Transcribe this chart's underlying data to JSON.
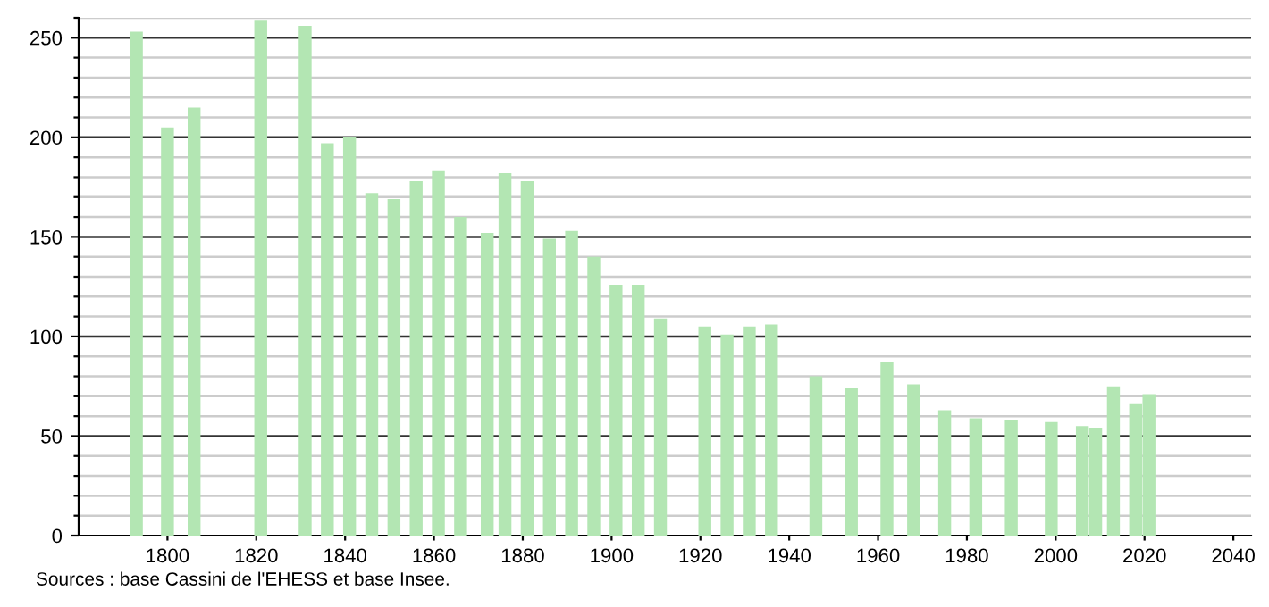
{
  "chart_data": {
    "type": "bar",
    "color": "#b3e6b3",
    "x": [
      1793,
      1800,
      1806,
      1821,
      1831,
      1836,
      1841,
      1846,
      1851,
      1856,
      1861,
      1866,
      1872,
      1876,
      1881,
      1886,
      1891,
      1896,
      1901,
      1906,
      1911,
      1921,
      1926,
      1931,
      1936,
      1946,
      1954,
      1962,
      1968,
      1975,
      1982,
      1990,
      1999,
      2006,
      2009,
      2013,
      2018,
      2021
    ],
    "values": [
      253,
      205,
      215,
      259,
      256,
      197,
      200,
      172,
      169,
      178,
      183,
      160,
      152,
      182,
      178,
      149,
      153,
      140,
      126,
      126,
      109,
      105,
      101,
      105,
      106,
      80,
      74,
      87,
      76,
      63,
      59,
      58,
      57,
      55,
      54,
      75,
      66,
      71
    ],
    "xlim": [
      1780,
      2044
    ],
    "xticks": [
      1800,
      1820,
      1840,
      1860,
      1880,
      1900,
      1920,
      1940,
      1960,
      1980,
      2000,
      2020,
      2040
    ],
    "ylim": [
      0,
      260
    ],
    "yticks": [
      0,
      {
        "value": 10,
        "label": null
      },
      {
        "value": 20,
        "label": null
      },
      {
        "value": 30,
        "label": null
      },
      {
        "value": 40,
        "label": null
      },
      50,
      {
        "value": 60,
        "label": null
      },
      {
        "value": 70,
        "label": null
      },
      {
        "value": 80,
        "label": null
      },
      {
        "value": 90,
        "label": null
      },
      100,
      {
        "value": 110,
        "label": null
      },
      {
        "value": 120,
        "label": null
      },
      {
        "value": 130,
        "label": null
      },
      {
        "value": 140,
        "label": null
      },
      150,
      {
        "value": 160,
        "label": null
      },
      {
        "value": 170,
        "label": null
      },
      {
        "value": 180,
        "label": null
      },
      {
        "value": 190,
        "label": null
      },
      200,
      {
        "value": 210,
        "label": null
      },
      {
        "value": 220,
        "label": null
      },
      {
        "value": 230,
        "label": null
      },
      {
        "value": 240,
        "label": null
      },
      250,
      {
        "value": 260,
        "label": null
      }
    ],
    "grid": "y",
    "annotations": [
      "Sources : base Cassini de l'EHESS et base Insee."
    ]
  }
}
